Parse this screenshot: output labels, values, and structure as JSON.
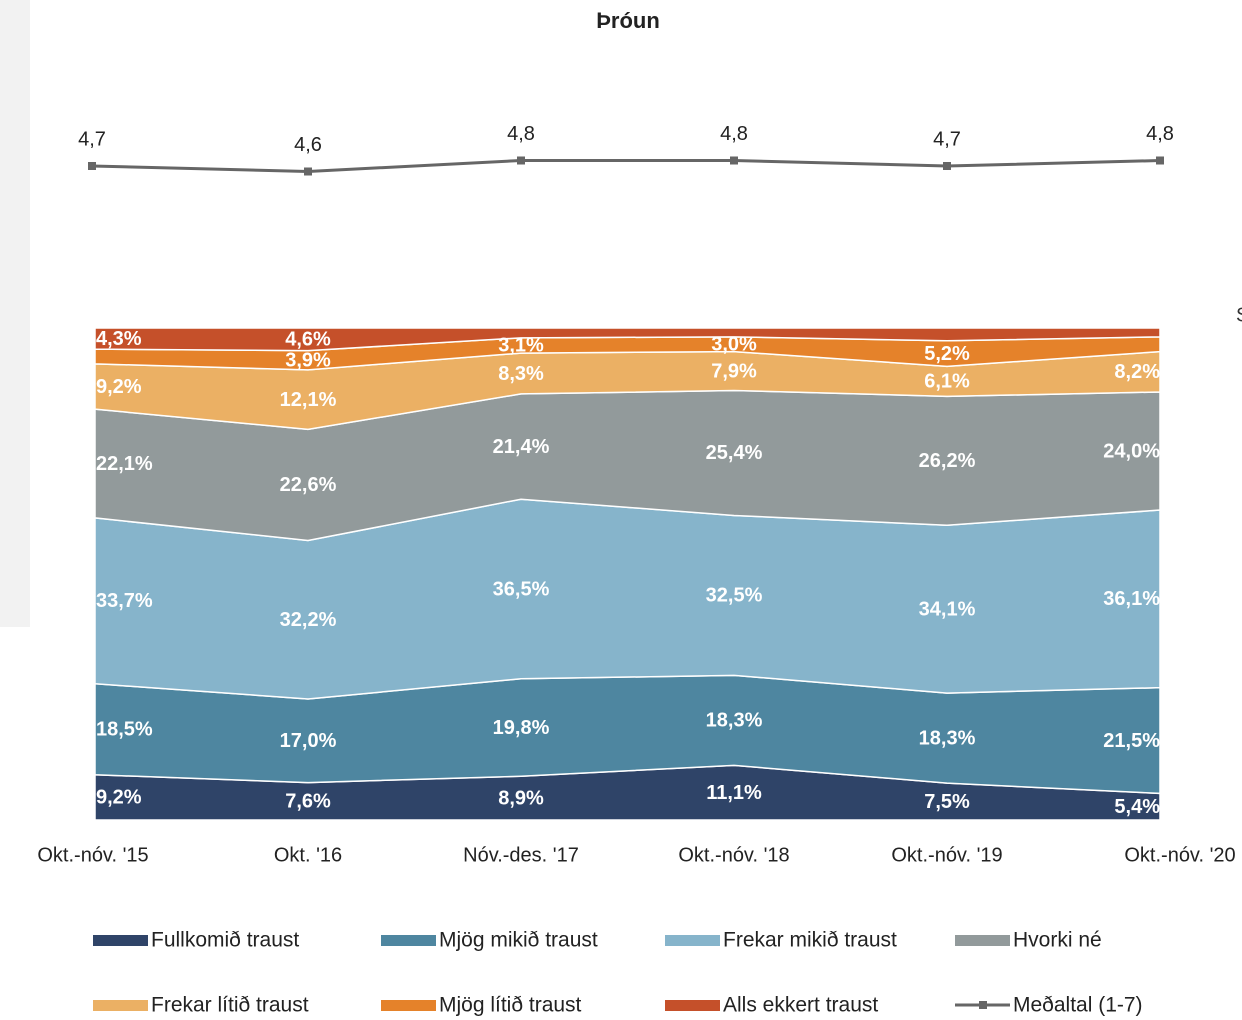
{
  "chart_data": {
    "type": "stacked_area",
    "title": "Þróun",
    "side_label": "S",
    "categories": [
      "Okt.-nóv. '15",
      "Okt. '16",
      "Nóv.-des. '17",
      "Okt.-nóv. '18",
      "Okt.-nóv. '19",
      "Okt.-nóv. '20"
    ],
    "ylim": [
      0,
      100
    ],
    "series": [
      {
        "name": "Fullkomið traust",
        "color": "#2f4468",
        "values": [
          9.2,
          7.6,
          8.9,
          11.1,
          7.5,
          5.4
        ],
        "value_labels": [
          "9,2%",
          "7,6%",
          "8,9%",
          "11,1%",
          "7,5%",
          "5,4%"
        ]
      },
      {
        "name": "Mjög mikið traust",
        "color": "#4e86a0",
        "values": [
          18.5,
          17.0,
          19.8,
          18.3,
          18.3,
          21.5
        ],
        "value_labels": [
          "18,5%",
          "17,0%",
          "19,8%",
          "18,3%",
          "18,3%",
          "21,5%"
        ]
      },
      {
        "name": "Frekar mikið traust",
        "color": "#86b4cb",
        "values": [
          33.7,
          32.2,
          36.5,
          32.5,
          34.1,
          36.1
        ],
        "value_labels": [
          "33,7%",
          "32,2%",
          "36,5%",
          "32,5%",
          "34,1%",
          "36,1%"
        ]
      },
      {
        "name": "Hvorki né",
        "color": "#929a9b",
        "values": [
          22.1,
          22.6,
          21.4,
          25.4,
          26.2,
          24.0
        ],
        "value_labels": [
          "22,1%",
          "22,6%",
          "21,4%",
          "25,4%",
          "26,2%",
          "24,0%"
        ]
      },
      {
        "name": "Frekar lítið traust",
        "color": "#ebb064",
        "values": [
          9.2,
          12.1,
          8.3,
          7.9,
          6.1,
          8.2
        ],
        "value_labels": [
          "9,2%",
          "12,1%",
          "8,3%",
          "7,9%",
          "6,1%",
          "8,2%"
        ]
      },
      {
        "name": "Mjög lítið traust",
        "color": "#e5822a",
        "values": [
          3.0,
          3.9,
          3.1,
          3.0,
          5.2,
          3.0
        ],
        "value_labels": [
          null,
          "3,9%",
          "3,1%",
          "3,0%",
          "5,2%",
          null
        ]
      },
      {
        "name": "Alls ekkert traust",
        "color": "#c5502a",
        "values": [
          4.3,
          4.6,
          2.0,
          1.8,
          2.6,
          1.8
        ],
        "value_labels": [
          "4,3%",
          "4,6%",
          null,
          null,
          null,
          null
        ]
      },
      {
        "name": "Meðaltal (1-7)",
        "color": "#666666",
        "axis": "y2",
        "values": [
          4.7,
          4.6,
          4.8,
          4.8,
          4.7,
          4.8
        ],
        "value_labels": [
          "4,7",
          "4,6",
          "4,8",
          "4,8",
          "4,7",
          "4,8"
        ]
      }
    ],
    "y2lim": [
      4,
      5
    ]
  }
}
